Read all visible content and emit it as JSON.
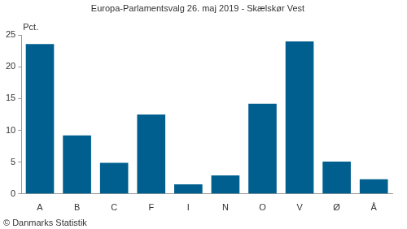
{
  "chart_data": {
    "type": "bar",
    "title": "Europa-Parlamentsvalg 26. maj 2019 - Skælskør Vest",
    "ylabel": "Pct.",
    "credit": "© Danmarks Statistik",
    "categories": [
      "A",
      "B",
      "C",
      "F",
      "I",
      "N",
      "O",
      "V",
      "Ø",
      "Å"
    ],
    "values": [
      23.6,
      9.2,
      4.9,
      12.5,
      1.5,
      2.9,
      14.2,
      24.0,
      5.1,
      2.3
    ],
    "color": "#005f8f",
    "ylim": [
      0,
      25
    ],
    "yticks": [
      0,
      5,
      10,
      15,
      20,
      25
    ],
    "grid": false
  }
}
